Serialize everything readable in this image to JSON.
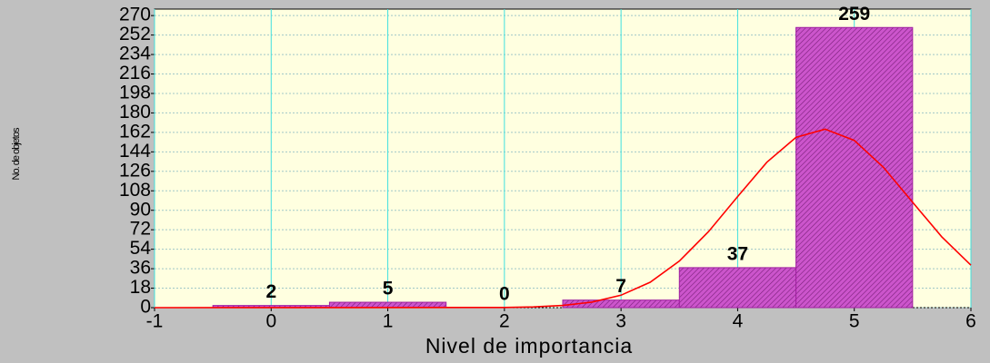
{
  "chart_data": {
    "type": "histogram",
    "x_label": "Nivel de importancia",
    "y_label": "No. de objetos",
    "bins": [
      -0.5,
      0.5,
      1.5,
      2.5,
      3.5,
      4.5,
      5.5
    ],
    "values": [
      2,
      5,
      0,
      7,
      37,
      259
    ],
    "color": "#cc55cc",
    "xlim": [
      -1,
      6
    ],
    "xticks": [
      -1,
      0,
      1,
      2,
      3,
      4,
      5,
      6
    ],
    "ylim": [
      0,
      276
    ],
    "yticks": [
      0,
      18,
      36,
      54,
      72,
      90,
      108,
      126,
      144,
      162,
      180,
      198,
      216,
      234,
      252,
      270
    ],
    "grid": true,
    "curve": {
      "color": "#ff0000",
      "x": [
        -1,
        2,
        2.25,
        2.5,
        2.75,
        3,
        3.25,
        3.5,
        3.75,
        4,
        4.25,
        4.5,
        4.75,
        5,
        5.25,
        5.5,
        5.75,
        6
      ],
      "values": [
        0,
        0.2,
        0.7,
        2.0,
        5.1,
        11.5,
        23.5,
        43.0,
        70.3,
        102.7,
        134.4,
        157.4,
        165,
        154.6,
        129.7,
        97.4,
        65.5,
        39.3
      ]
    }
  }
}
